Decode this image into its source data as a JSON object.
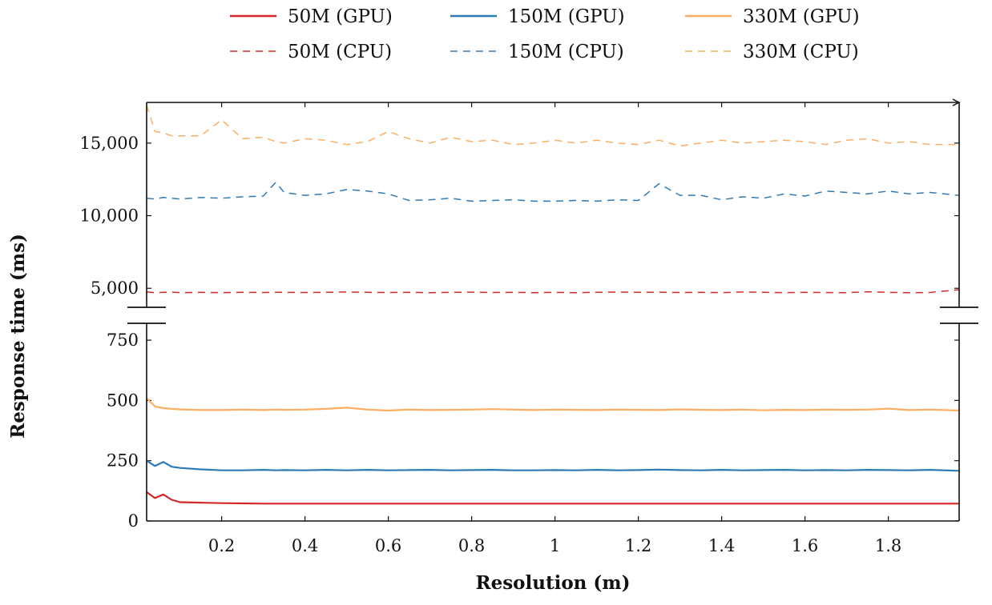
{
  "chart_data": {
    "type": "line",
    "xlabel": "Resolution (m)",
    "ylabel": "Response time (ms)",
    "xlim": [
      0.02,
      1.97
    ],
    "x_ticks": [
      {
        "value": 0.2,
        "label": "0.2"
      },
      {
        "value": 0.4,
        "label": "0.4"
      },
      {
        "value": 0.6,
        "label": "0.6"
      },
      {
        "value": 0.8,
        "label": "0.8"
      },
      {
        "value": 1.0,
        "label": "1"
      },
      {
        "value": 1.2,
        "label": "1.2"
      },
      {
        "value": 1.4,
        "label": "1.4"
      },
      {
        "value": 1.6,
        "label": "1.6"
      },
      {
        "value": 1.8,
        "label": "1.8"
      }
    ],
    "y_axis_broken": true,
    "lower_segment": {
      "ylim": [
        0,
        800
      ],
      "ticks": [
        {
          "value": 0,
          "label": "0"
        },
        {
          "value": 250,
          "label": "250"
        },
        {
          "value": 500,
          "label": "500"
        },
        {
          "value": 750,
          "label": "750"
        }
      ]
    },
    "upper_segment": {
      "ylim": [
        3800,
        17800
      ],
      "ticks": [
        {
          "value": 5000,
          "label": "5,000"
        },
        {
          "value": 10000,
          "label": "10,000"
        },
        {
          "value": 15000,
          "label": "15,000"
        }
      ]
    },
    "legend_position": "top",
    "x": [
      0.02,
      0.04,
      0.06,
      0.08,
      0.1,
      0.15,
      0.2,
      0.25,
      0.3,
      0.33,
      0.35,
      0.4,
      0.45,
      0.5,
      0.55,
      0.6,
      0.65,
      0.7,
      0.75,
      0.8,
      0.85,
      0.9,
      0.95,
      1.0,
      1.05,
      1.1,
      1.15,
      1.2,
      1.25,
      1.3,
      1.35,
      1.4,
      1.45,
      1.5,
      1.55,
      1.6,
      1.65,
      1.7,
      1.75,
      1.8,
      1.85,
      1.9,
      1.97
    ],
    "series": [
      {
        "name": "50M (GPU)",
        "color": "#d62728",
        "dash": false,
        "segment": "lower",
        "values": [
          120,
          95,
          110,
          88,
          78,
          76,
          74,
          73,
          72,
          72,
          72,
          72,
          72,
          72,
          72,
          72,
          72,
          72,
          72,
          72,
          72,
          72,
          72,
          72,
          72,
          72,
          72,
          72,
          72,
          72,
          72,
          72,
          72,
          72,
          72,
          72,
          72,
          72,
          72,
          72,
          72,
          72,
          72
        ]
      },
      {
        "name": "150M (GPU)",
        "color": "#2c7bb6",
        "dash": false,
        "segment": "lower",
        "values": [
          250,
          228,
          245,
          225,
          220,
          214,
          210,
          210,
          212,
          210,
          211,
          210,
          212,
          210,
          212,
          210,
          211,
          212,
          210,
          211,
          212,
          210,
          210,
          211,
          210,
          212,
          210,
          211,
          213,
          211,
          210,
          212,
          210,
          211,
          212,
          210,
          211,
          210,
          212,
          211,
          210,
          212,
          208
        ]
      },
      {
        "name": "330M (GPU)",
        "color": "#fdae61",
        "dash": false,
        "segment": "lower",
        "values": [
          510,
          475,
          468,
          465,
          463,
          460,
          460,
          462,
          460,
          462,
          461,
          462,
          465,
          470,
          462,
          458,
          462,
          460,
          461,
          462,
          464,
          462,
          460,
          462,
          461,
          460,
          462,
          461,
          460,
          463,
          461,
          460,
          462,
          459,
          461,
          460,
          462,
          461,
          462,
          466,
          460,
          462,
          458
        ]
      },
      {
        "name": "50M (CPU)",
        "color": "#d62728",
        "dash": true,
        "segment": "upper",
        "values": [
          4750,
          4700,
          4720,
          4730,
          4700,
          4720,
          4700,
          4720,
          4710,
          4720,
          4720,
          4710,
          4720,
          4740,
          4720,
          4710,
          4720,
          4700,
          4720,
          4730,
          4710,
          4720,
          4700,
          4720,
          4700,
          4720,
          4740,
          4720,
          4730,
          4710,
          4720,
          4700,
          4740,
          4720,
          4700,
          4720,
          4710,
          4700,
          4760,
          4720,
          4700,
          4710,
          4900
        ]
      },
      {
        "name": "150M (CPU)",
        "color": "#2c7bb6",
        "dash": true,
        "segment": "upper",
        "values": [
          11200,
          11150,
          11250,
          11200,
          11150,
          11250,
          11200,
          11300,
          11350,
          12300,
          11600,
          11400,
          11500,
          11800,
          11700,
          11500,
          11050,
          11100,
          11200,
          11000,
          11050,
          11100,
          11000,
          11000,
          11050,
          11000,
          11100,
          11050,
          12200,
          11400,
          11400,
          11100,
          11300,
          11200,
          11500,
          11350,
          11700,
          11600,
          11500,
          11700,
          11500,
          11600,
          11400
        ]
      },
      {
        "name": "330M (CPU)",
        "color": "#fdae61",
        "dash": true,
        "segment": "upper",
        "values": [
          17600,
          15800,
          15700,
          15500,
          15500,
          15500,
          16600,
          15300,
          15400,
          15100,
          15000,
          15300,
          15200,
          14900,
          15100,
          15800,
          15300,
          15000,
          15400,
          15100,
          15200,
          14900,
          15000,
          15200,
          15000,
          15200,
          15000,
          14900,
          15200,
          14800,
          15000,
          15200,
          15000,
          15100,
          15200,
          15100,
          14900,
          15200,
          15300,
          15000,
          15100,
          14900,
          14900
        ]
      }
    ]
  }
}
